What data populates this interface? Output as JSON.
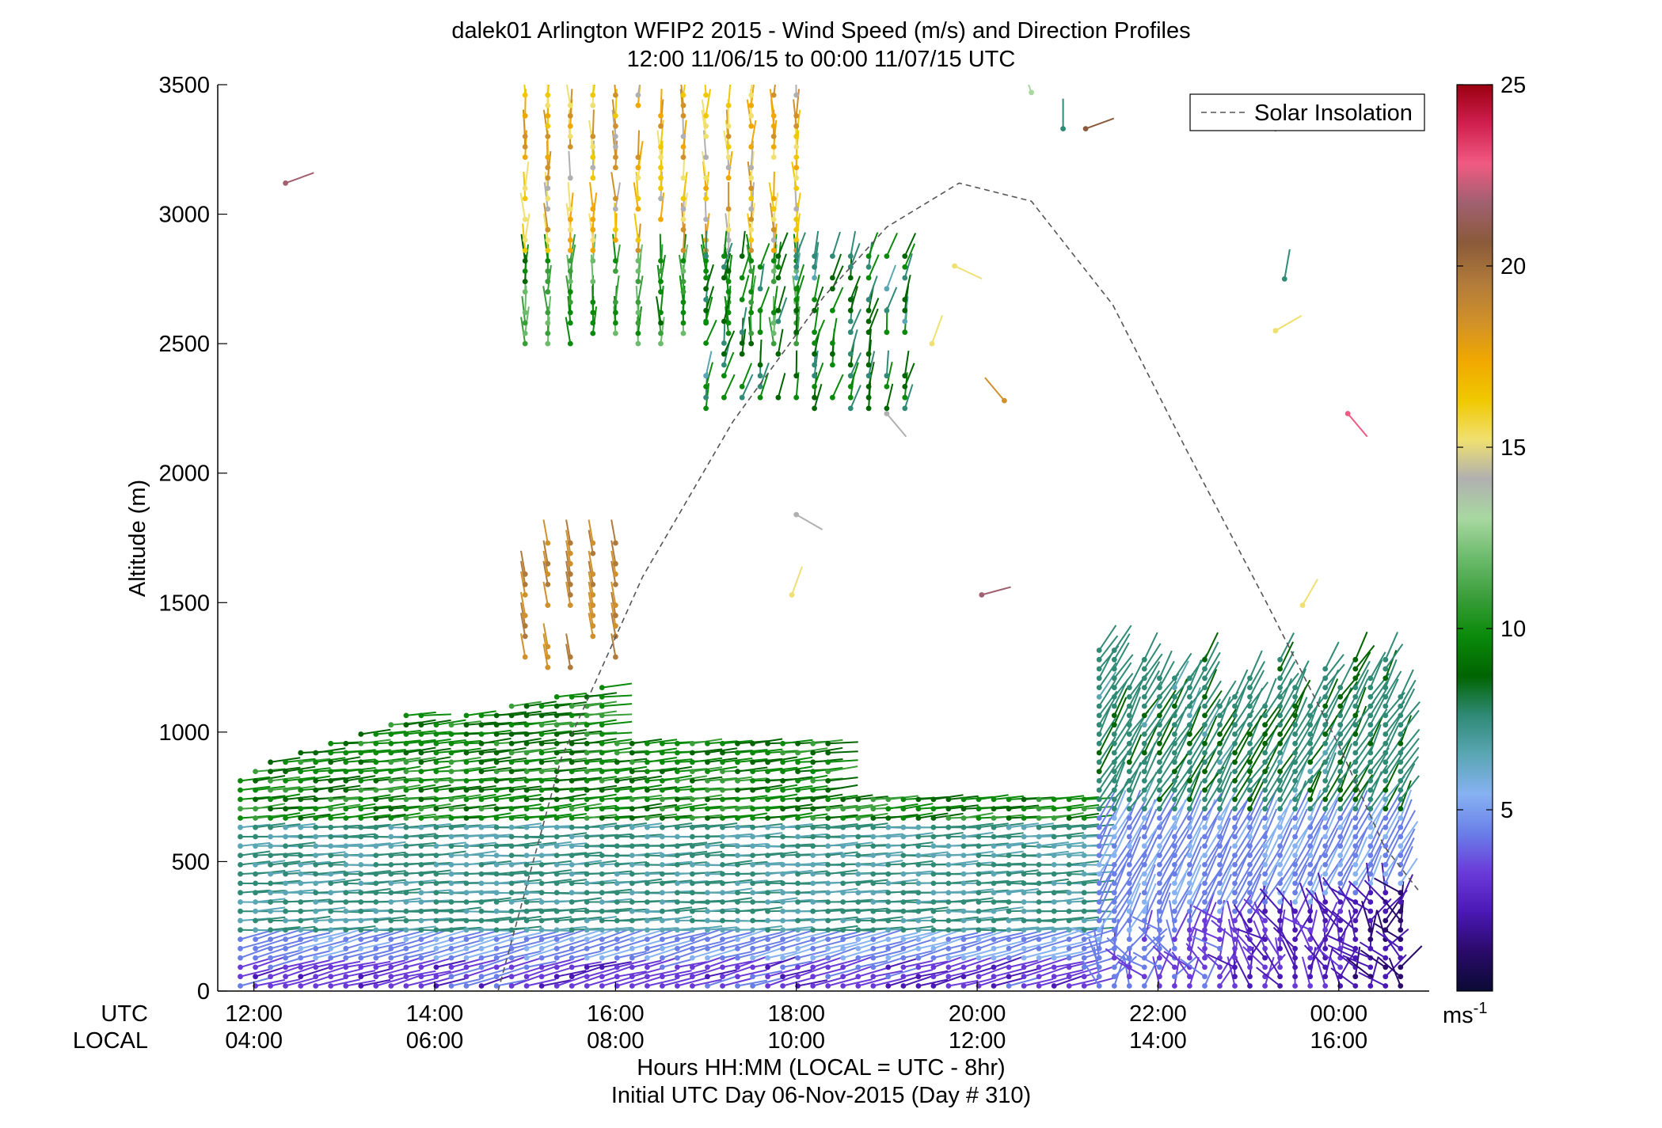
{
  "chart_data": {
    "type": "wind-barb profile (time-height)",
    "title_line1": "dalek01 Arlington WFIP2 2015 - Wind Speed (m/s) and Direction Profiles",
    "title_line2": "12:00 11/06/15 to 00:00 11/07/15  UTC",
    "ylabel": "Altitude (m)",
    "ylim": [
      0,
      3500
    ],
    "yticks": [
      "0",
      "500",
      "1000",
      "1500",
      "2000",
      "2500",
      "3000",
      "3500"
    ],
    "xlim_hours_utc": [
      11.6,
      25.0
    ],
    "row_labels": {
      "utc": "UTC",
      "local": "LOCAL"
    },
    "xticks_utc": [
      "12:00",
      "14:00",
      "16:00",
      "18:00",
      "20:00",
      "22:00",
      "00:00"
    ],
    "xticks_local": [
      "04:00",
      "06:00",
      "08:00",
      "10:00",
      "12:00",
      "14:00",
      "16:00"
    ],
    "xlabel_line1": "Hours HH:MM  (LOCAL = UTC - 8hr)",
    "xlabel_line2": "Initial UTC Day 06-Nov-2015 (Day # 310)",
    "legend": {
      "entry": "Solar Insolation",
      "style": "dashed",
      "color": "#555555",
      "position": "top-right"
    },
    "colorbar": {
      "label": "ms",
      "label_sup": "-1",
      "range": [
        0,
        25
      ],
      "ticks": [
        "5",
        "10",
        "15",
        "20",
        "25"
      ],
      "colors": [
        "#0a0a33",
        "#2a0a6a",
        "#4a18b4",
        "#6a3ad8",
        "#6a7ee8",
        "#86b2f2",
        "#5aa6b4",
        "#2f8a76",
        "#006400",
        "#0a8a0a",
        "#3a9e3a",
        "#6cbb6c",
        "#a8d8a0",
        "#b0b0b0",
        "#f0e070",
        "#f0c800",
        "#f0a800",
        "#d0902a",
        "#b07a3a",
        "#8a5a3a",
        "#a06070",
        "#f05a82",
        "#d02050",
        "#9a0010"
      ]
    },
    "solar_insolation": {
      "note": "dashed curve, peak near 19:45 UTC",
      "points": [
        [
          14.7,
          0
        ],
        [
          15.4,
          900
        ],
        [
          16.3,
          1600
        ],
        [
          17.3,
          2200
        ],
        [
          18.3,
          2680
        ],
        [
          19.0,
          2950
        ],
        [
          19.8,
          3120
        ],
        [
          20.6,
          3050
        ],
        [
          21.5,
          2650
        ],
        [
          22.3,
          2100
        ],
        [
          23.2,
          1500
        ],
        [
          24.0,
          950
        ],
        [
          24.5,
          560
        ],
        [
          24.9,
          380
        ]
      ]
    },
    "series_summary": [
      {
        "layer": "0-200 m",
        "hours": [
          11.8,
          24.7
        ],
        "speed_ms": [
          3,
          6
        ],
        "colors": "purple-blue"
      },
      {
        "layer": "200-900 m",
        "hours": [
          11.8,
          21.5
        ],
        "speed_ms": [
          6,
          10
        ],
        "colors": "green"
      },
      {
        "layer": "0-1300 m",
        "hours": [
          21.5,
          24.7
        ],
        "speed_ms": [
          1,
          8
        ],
        "colors": "dark blue to green"
      },
      {
        "layer": "2300-3500 m",
        "hours": [
          15.0,
          19.5
        ],
        "speed_ms": [
          8,
          20
        ],
        "colors": "green-yellow-orange-brown"
      }
    ]
  }
}
